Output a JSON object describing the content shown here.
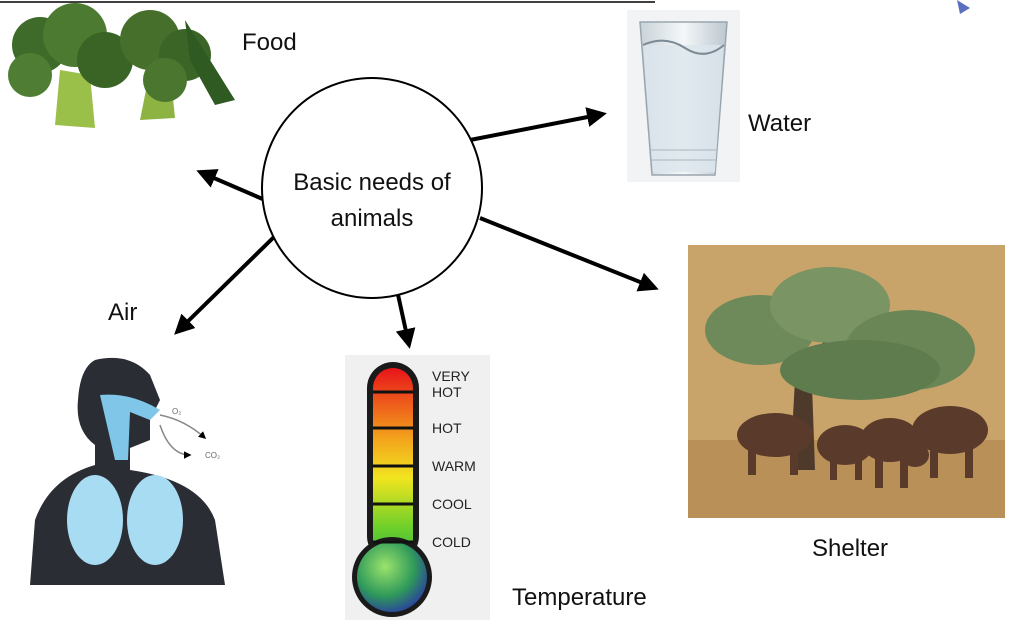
{
  "center": {
    "label_lines": [
      "Basic needs of",
      "animals"
    ]
  },
  "nodes": [
    {
      "label": "Food"
    },
    {
      "label": "Water"
    },
    {
      "label": "Shelter"
    },
    {
      "label": "Air"
    },
    {
      "label": "Temperature"
    }
  ],
  "thermometer": {
    "levels": [
      [
        "VERY",
        "HOT"
      ],
      [
        "HOT"
      ],
      [
        "WARM"
      ],
      [
        "COOL"
      ],
      [
        "COLD"
      ]
    ]
  },
  "air_image": {
    "labels": [
      "O₂",
      "CO₂"
    ]
  }
}
